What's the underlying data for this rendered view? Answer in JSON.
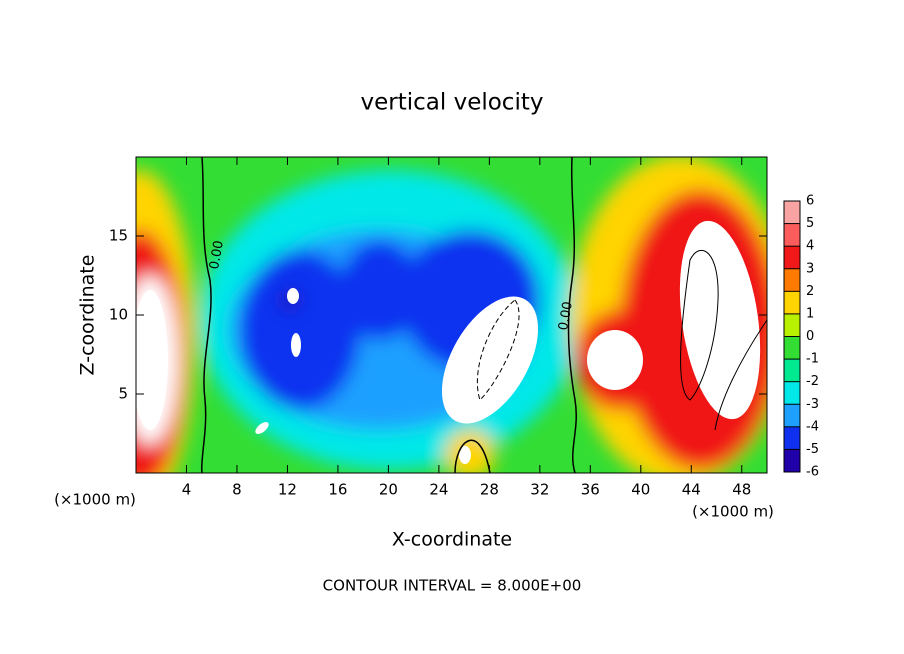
{
  "chart_data": {
    "type": "contour",
    "title": "vertical velocity",
    "x_label": "X-coordinate",
    "y_label": "Z-coordinate",
    "x_unit_labels": [
      "(×1000 m)",
      "(×1000 m)"
    ],
    "annotation": "CONTOUR INTERVAL = 8.000E+00",
    "contour_labels": [
      "0.00",
      "0.00"
    ],
    "xlim": [
      0,
      50
    ],
    "xticks": [
      4,
      8,
      12,
      16,
      20,
      24,
      28,
      32,
      36,
      40,
      44,
      48
    ],
    "ylim": [
      0,
      20
    ],
    "yticks": [
      5,
      10,
      15
    ],
    "colorbar": {
      "ticks": [
        6,
        5,
        4,
        3,
        2,
        1,
        0,
        -1,
        -2,
        -3,
        -4,
        -5,
        -6
      ],
      "colors": [
        "#f9a3a3",
        "#fb5c5c",
        "#f01818",
        "#ff7a00",
        "#ffd400",
        "#b8f000",
        "#33dd33",
        "#00e890",
        "#00e8e8",
        "#1ea0ff",
        "#1030f0",
        "#2000a8"
      ]
    }
  }
}
